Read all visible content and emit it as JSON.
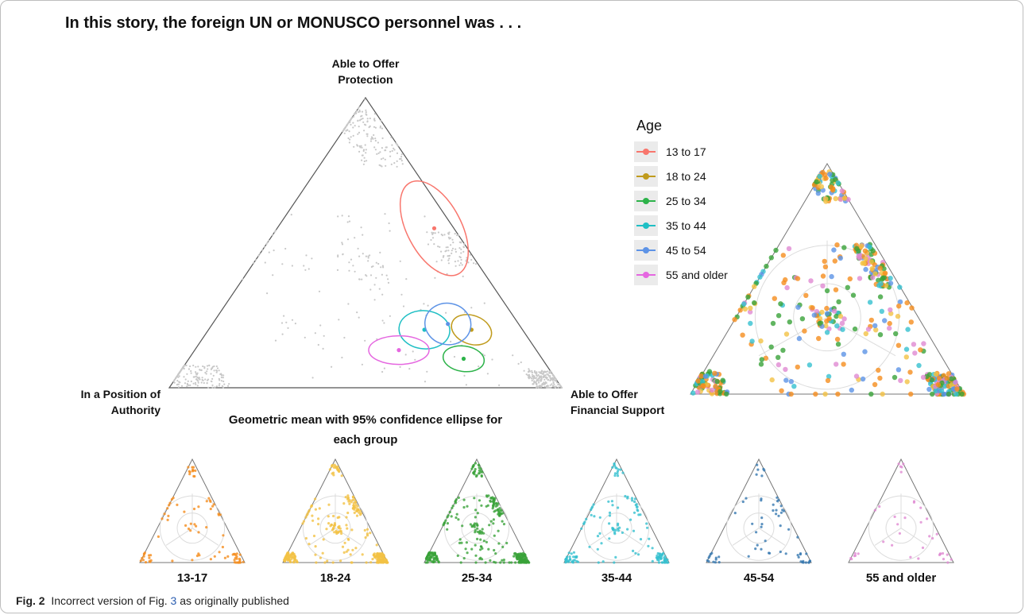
{
  "title": "In this story, the foreign UN or MONUSCO personnel was . . .",
  "caption": {
    "label": "Fig. 2",
    "text_before": "Incorrect version of Fig.",
    "link": "3",
    "text_after": "as originally published"
  },
  "colors": {
    "13 to 17": "#f8766d",
    "18 to 24": "#c09b1d",
    "25 to 34": "#2db34a",
    "35 to 44": "#1fbfc4",
    "45 to 54": "#5d93e6",
    "55 and older": "#e567e0",
    "background_points": "#c8c8c8",
    "orange": "#f58d1e",
    "gold": "#f2c245",
    "green": "#3aa23a",
    "teal": "#36c0cf",
    "blue": "#3678b0",
    "pink": "#e08ad2"
  },
  "chart_data": [
    {
      "type": "scatter",
      "subtype": "ternary",
      "vertices": {
        "top": "Able to Offer Protection",
        "left": "In a Position of Authority",
        "right": "Able to Offer Financial Support"
      },
      "note": "Geometric mean with 95% confidence ellipse for each group",
      "series": [
        {
          "name": "13 to 17",
          "mean": {
            "protection": 0.55,
            "authority": 0.05,
            "financial": 0.4
          }
        },
        {
          "name": "18 to 24",
          "mean": {
            "protection": 0.2,
            "authority": 0.13,
            "financial": 0.67
          }
        },
        {
          "name": "25 to 34",
          "mean": {
            "protection": 0.1,
            "authority": 0.2,
            "financial": 0.7
          }
        },
        {
          "name": "35 to 44",
          "mean": {
            "protection": 0.2,
            "authority": 0.25,
            "financial": 0.55
          }
        },
        {
          "name": "45 to 54",
          "mean": {
            "protection": 0.22,
            "authority": 0.18,
            "financial": 0.6
          }
        },
        {
          "name": "55 and older",
          "mean": {
            "protection": 0.13,
            "authority": 0.35,
            "financial": 0.52
          }
        }
      ],
      "legend": {
        "title": "Age",
        "entries": [
          "13 to 17",
          "18 to 24",
          "25 to 34",
          "35 to 44",
          "45 to 54",
          "55 and older"
        ],
        "placement": "right"
      }
    },
    {
      "type": "scatter",
      "subtype": "ternary",
      "description_series": "all respondents colored by age group",
      "series": [
        "13 to 17",
        "18 to 24",
        "25 to 34",
        "35 to 44",
        "45 to 54",
        "55 and older"
      ]
    },
    {
      "type": "scatter",
      "subtype": "ternary-small-multiples",
      "panels": [
        {
          "label": "13-17"
        },
        {
          "label": "18-24"
        },
        {
          "label": "25-34"
        },
        {
          "label": "35-44"
        },
        {
          "label": "45-54"
        },
        {
          "label": "55 and older"
        }
      ]
    }
  ]
}
